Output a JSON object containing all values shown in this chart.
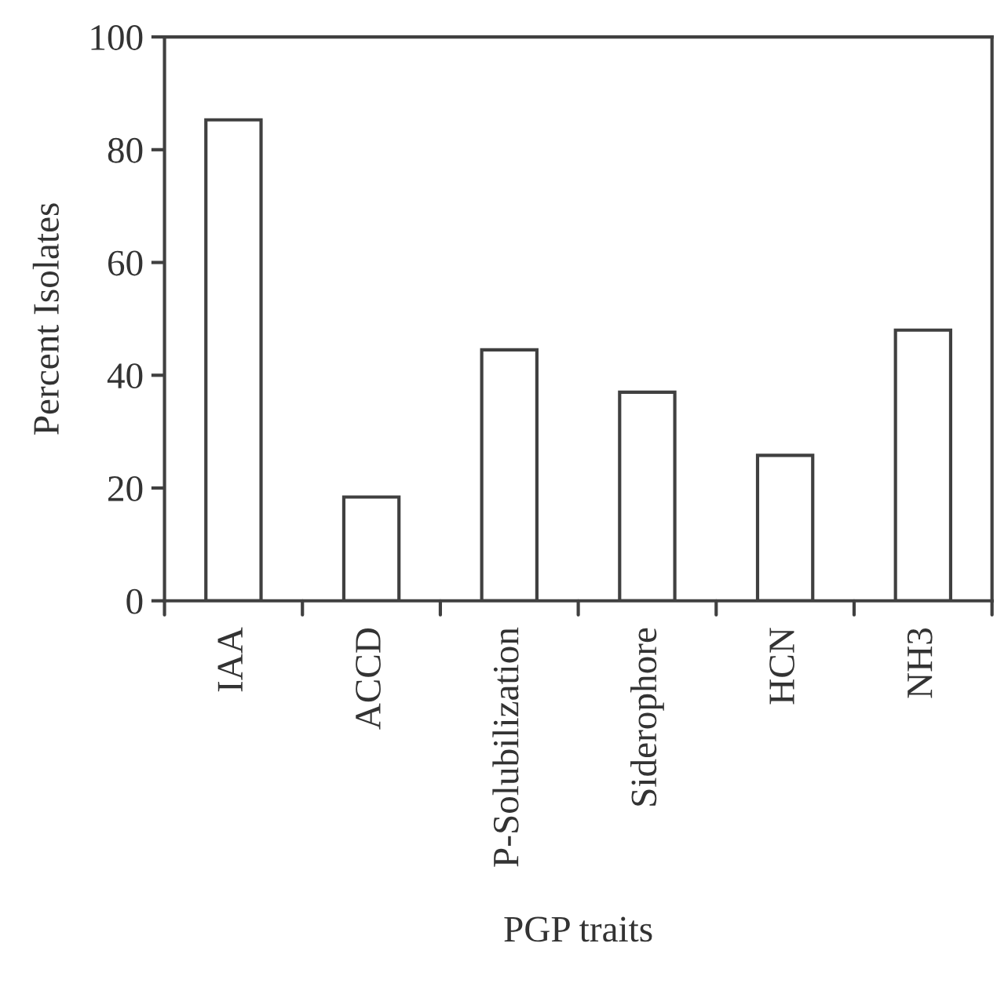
{
  "chart_data": {
    "type": "bar",
    "categories": [
      "IAA",
      "ACCD",
      "P-Solubilization",
      "Siderophore",
      "HCN",
      "NH3"
    ],
    "values": [
      85.3,
      18.4,
      44.5,
      37,
      25.8,
      48
    ],
    "color": "#ffffff",
    "xlabel": "PGP traits",
    "ylabel": "Percent Isolates",
    "ylim": [
      0,
      100
    ],
    "yticks": [
      0,
      20,
      40,
      60,
      80,
      100
    ],
    "grid": false
  }
}
